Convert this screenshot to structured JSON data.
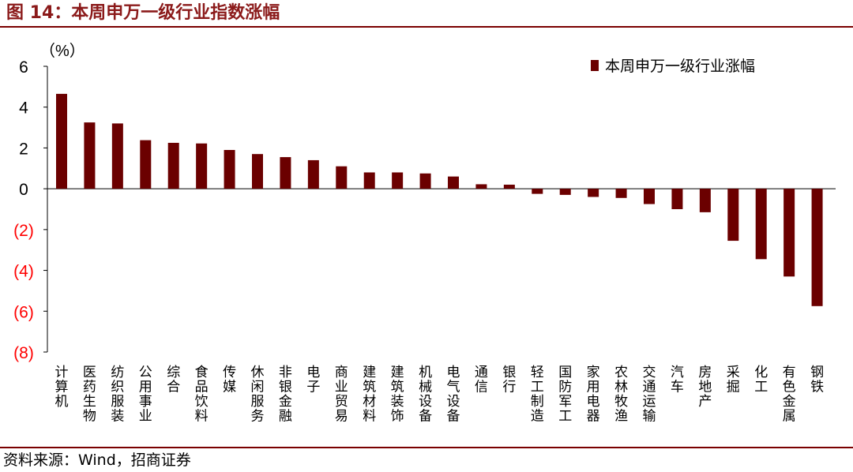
{
  "title": "图 14：本周申万一级行业指数涨幅",
  "source": "资料来源：Wind，招商证券",
  "colors": {
    "bar": "#6b0000",
    "negative_tick": "#ff0000",
    "rule": "#7a0000"
  },
  "chart_data": {
    "type": "bar",
    "unit_label": "（%）",
    "ylim": [
      -8,
      6
    ],
    "y_ticks": [
      {
        "value": 6,
        "label": "6"
      },
      {
        "value": 4,
        "label": "4"
      },
      {
        "value": 2,
        "label": "2"
      },
      {
        "value": 0,
        "label": "0"
      },
      {
        "value": -2,
        "label": "(2)"
      },
      {
        "value": -4,
        "label": "(4)"
      },
      {
        "value": -6,
        "label": "(6)"
      },
      {
        "value": -8,
        "label": "(8)"
      }
    ],
    "legend": "本周申万一级行业涨幅",
    "legend_position": "top-right",
    "grid": false,
    "categories": [
      "计算机",
      "医药生物",
      "纺织服装",
      "公用事业",
      "综合",
      "食品饮料",
      "传媒",
      "休闲服务",
      "非银金融",
      "电子",
      "商业贸易",
      "建筑材料",
      "建筑装饰",
      "机械设备",
      "电气设备",
      "通信",
      "银行",
      "轻工制造",
      "国防军工",
      "家用电器",
      "农林牧渔",
      "交通运输",
      "汽车",
      "房地产",
      "采掘",
      "化工",
      "有色金属",
      "钢铁"
    ],
    "series": [
      {
        "name": "本周申万一级行业涨幅",
        "values": [
          4.65,
          3.25,
          3.2,
          2.38,
          2.25,
          2.22,
          1.9,
          1.7,
          1.55,
          1.4,
          1.1,
          0.8,
          0.8,
          0.75,
          0.6,
          0.22,
          0.2,
          -0.25,
          -0.3,
          -0.4,
          -0.45,
          -0.75,
          -1.0,
          -1.15,
          -2.55,
          -3.45,
          -4.3,
          -5.75
        ]
      }
    ]
  }
}
